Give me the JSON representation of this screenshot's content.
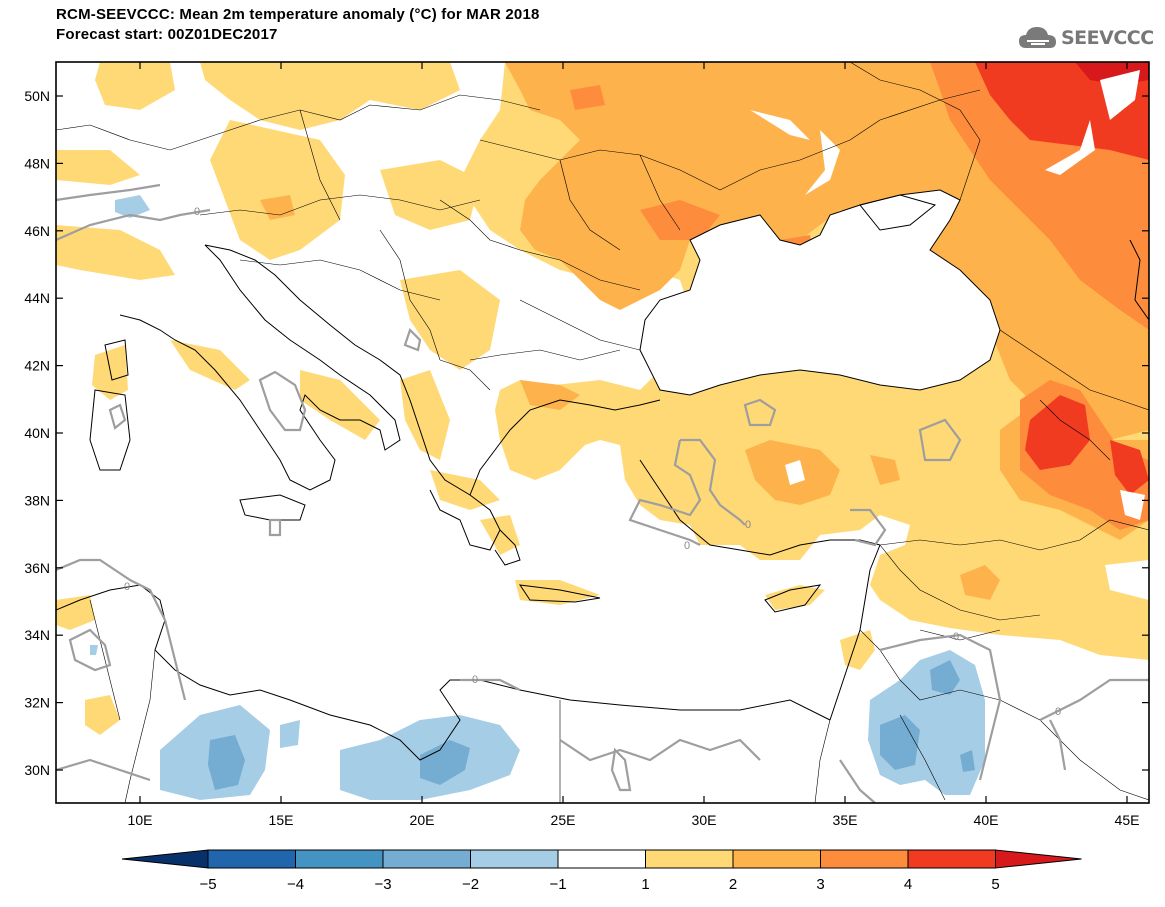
{
  "title": {
    "line1": "RCM-SEEVCCC: Mean 2m temperature anomaly (°C) for MAR 2018",
    "line2": "Forecast start: 00Z01DEC2017"
  },
  "logo": {
    "text": "SEEVCCC",
    "icon": "cloud-icon"
  },
  "axes": {
    "lat_labels": [
      "50N",
      "48N",
      "46N",
      "44N",
      "42N",
      "40N",
      "38N",
      "36N",
      "34N",
      "32N",
      "30N"
    ],
    "lon_labels": [
      "10E",
      "15E",
      "20E",
      "25E",
      "30E",
      "35E",
      "40E",
      "45E"
    ]
  },
  "contour_label": "0",
  "colorbar": {
    "labels": [
      "−5",
      "−4",
      "−3",
      "−2",
      "−1",
      "1",
      "2",
      "3",
      "4",
      "5"
    ],
    "colors": [
      "#08306b",
      "#2166ac",
      "#4393c3",
      "#74add1",
      "#a6cde6",
      "#ffffff",
      "#fed976",
      "#feb24c",
      "#fd8d3c",
      "#f03b20",
      "#d7191c"
    ]
  }
}
